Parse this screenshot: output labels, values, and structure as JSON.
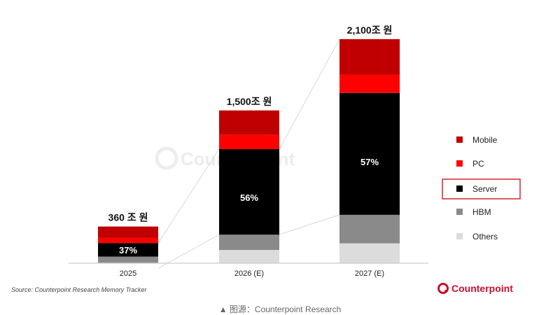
{
  "chart_data": {
    "type": "bar",
    "stacked": true,
    "categories": [
      "2025",
      "2026 (E)",
      "2027 (E)"
    ],
    "ylim": [
      0,
      2200
    ],
    "series": [
      {
        "name": "Others",
        "color": "#dcdcdc",
        "values": [
          5,
          130,
          195
        ]
      },
      {
        "name": "HBM",
        "color": "#8a8a8a",
        "values": [
          60,
          150,
          280
        ]
      },
      {
        "name": "Server",
        "color": "#000000",
        "values": [
          133,
          840,
          1197
        ]
      },
      {
        "name": "PC",
        "color": "#ff0000",
        "values": [
          50,
          140,
          180
        ]
      },
      {
        "name": "Mobile",
        "color": "#c00000",
        "values": [
          112,
          240,
          348
        ]
      }
    ],
    "legend_order": [
      "Mobile",
      "PC",
      "Server",
      "HBM",
      "Others"
    ],
    "highlighted_legend": "Server",
    "totals": [
      "360 조 원",
      "1,500조 원",
      "2,100조 원"
    ],
    "server_share_labels": [
      "37%",
      "56%",
      "57%"
    ],
    "legend_position": "right",
    "grid": false
  },
  "source_note": "Source: Counterpoint Research Memory Tracker",
  "brand": {
    "name": "Counterpoint",
    "watermark": "Counterpoint",
    "color": "#c8102e"
  },
  "caption": "▲ 图源：Counterpoint Research"
}
